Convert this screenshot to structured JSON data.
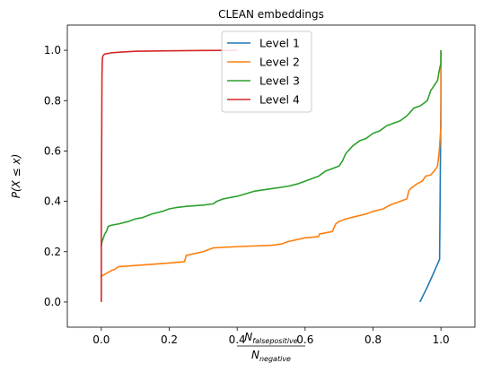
{
  "chart_data": {
    "type": "line",
    "title": "CLEAN embeddings",
    "xlabel": {
      "numerator_main": "N",
      "numerator_sub": "falsepositive",
      "denominator_main": "N",
      "denominator_sub": "negative"
    },
    "ylabel": "P(X ≤ x)",
    "xlim": [
      -0.1,
      1.1
    ],
    "ylim": [
      -0.1,
      1.1
    ],
    "xticks": [
      0.0,
      0.2,
      0.4,
      0.6,
      0.8,
      1.0
    ],
    "xtick_labels": [
      "0.0",
      "0.2",
      "0.4",
      "0.6",
      "0.8",
      "1.0"
    ],
    "yticks": [
      0.0,
      0.2,
      0.4,
      0.6,
      0.8,
      1.0
    ],
    "ytick_labels": [
      "0.0",
      "0.2",
      "0.4",
      "0.6",
      "0.8",
      "1.0"
    ],
    "grid": false,
    "legend_position": "top-center",
    "series": [
      {
        "name": "Level 1",
        "color": "#1f77b4",
        "x": [
          0.938,
          0.96,
          0.98,
          0.996,
          0.997,
          0.998,
          0.999,
          1.0,
          1.0
        ],
        "y": [
          0.0,
          0.06,
          0.12,
          0.17,
          0.33,
          0.5,
          0.66,
          0.8,
          1.0
        ]
      },
      {
        "name": "Level 2",
        "color": "#ff7f0e",
        "x": [
          0.0,
          0.003,
          0.01,
          0.03,
          0.04,
          0.05,
          0.1,
          0.15,
          0.2,
          0.245,
          0.25,
          0.3,
          0.33,
          0.4,
          0.5,
          0.53,
          0.55,
          0.6,
          0.64,
          0.642,
          0.68,
          0.69,
          0.7,
          0.72,
          0.75,
          0.78,
          0.8,
          0.83,
          0.85,
          0.88,
          0.9,
          0.905,
          0.91,
          0.93,
          0.945,
          0.95,
          0.955,
          0.97,
          0.98,
          0.99,
          0.995,
          1.0,
          1.0
        ],
        "y": [
          0.1,
          0.105,
          0.11,
          0.125,
          0.13,
          0.14,
          0.145,
          0.15,
          0.155,
          0.16,
          0.185,
          0.2,
          0.215,
          0.22,
          0.225,
          0.23,
          0.24,
          0.255,
          0.26,
          0.27,
          0.28,
          0.31,
          0.32,
          0.33,
          0.34,
          0.35,
          0.36,
          0.37,
          0.385,
          0.4,
          0.41,
          0.44,
          0.45,
          0.47,
          0.48,
          0.49,
          0.5,
          0.505,
          0.52,
          0.54,
          0.6,
          0.7,
          1.0
        ]
      },
      {
        "name": "Level 3",
        "color": "#2ca02c",
        "x": [
          0.0,
          0.002,
          0.005,
          0.01,
          0.015,
          0.02,
          0.03,
          0.05,
          0.08,
          0.1,
          0.12,
          0.15,
          0.18,
          0.2,
          0.22,
          0.25,
          0.3,
          0.33,
          0.34,
          0.36,
          0.4,
          0.45,
          0.5,
          0.55,
          0.58,
          0.6,
          0.62,
          0.64,
          0.65,
          0.66,
          0.68,
          0.7,
          0.71,
          0.72,
          0.74,
          0.76,
          0.78,
          0.8,
          0.82,
          0.84,
          0.86,
          0.88,
          0.9,
          0.92,
          0.94,
          0.96,
          0.97,
          0.98,
          0.99,
          0.995,
          1.0,
          1.0
        ],
        "y": [
          0.22,
          0.24,
          0.25,
          0.27,
          0.28,
          0.3,
          0.305,
          0.31,
          0.32,
          0.33,
          0.335,
          0.35,
          0.36,
          0.37,
          0.375,
          0.38,
          0.385,
          0.39,
          0.4,
          0.41,
          0.42,
          0.44,
          0.45,
          0.46,
          0.47,
          0.48,
          0.49,
          0.5,
          0.51,
          0.52,
          0.53,
          0.54,
          0.56,
          0.59,
          0.62,
          0.64,
          0.65,
          0.67,
          0.68,
          0.7,
          0.71,
          0.72,
          0.74,
          0.77,
          0.78,
          0.8,
          0.84,
          0.86,
          0.88,
          0.92,
          0.95,
          1.0
        ]
      },
      {
        "name": "Level 4",
        "color": "#d62728",
        "x": [
          0.0,
          0.0,
          0.001,
          0.002,
          0.003,
          0.004,
          0.006,
          0.01,
          0.03,
          0.06,
          0.1,
          0.2,
          0.3,
          0.4
        ],
        "y": [
          0.0,
          0.3,
          0.6,
          0.9,
          0.96,
          0.975,
          0.98,
          0.985,
          0.99,
          0.993,
          0.996,
          0.998,
          0.999,
          1.0
        ]
      }
    ]
  }
}
